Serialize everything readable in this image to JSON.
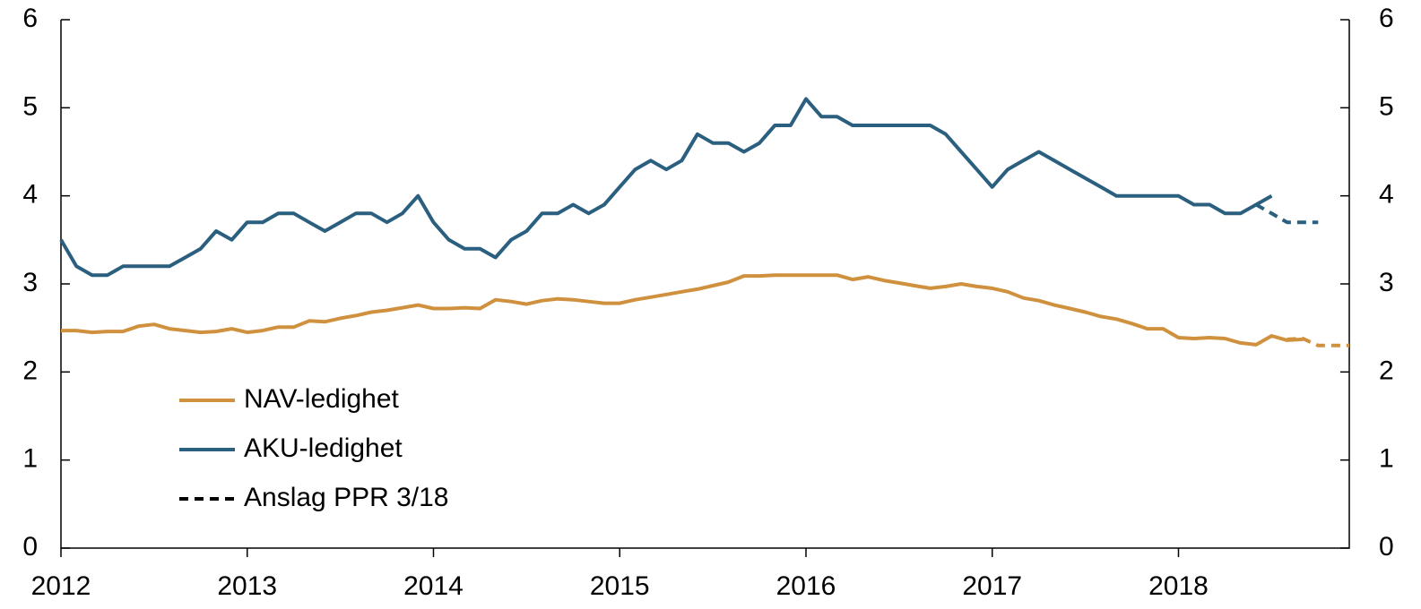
{
  "chart_data": {
    "type": "line",
    "xlim": [
      2012,
      2018.917
    ],
    "xticks": [
      2012,
      2013,
      2014,
      2015,
      2016,
      2017,
      2018
    ],
    "ylim": [
      0,
      6
    ],
    "yticks": [
      0,
      1,
      2,
      3,
      4,
      5,
      6
    ],
    "y2lim": [
      0,
      6
    ],
    "y2ticks": [
      0,
      1,
      2,
      3,
      4,
      5,
      6
    ],
    "forecast_label": "Anslag PPR 3/18",
    "forecast_legend_color": "#000000",
    "series": [
      {
        "name": "NAV-ledighet",
        "color": "#d0913f",
        "x": [
          2012.0,
          2012.083,
          2012.167,
          2012.25,
          2012.333,
          2012.417,
          2012.5,
          2012.583,
          2012.667,
          2012.75,
          2012.833,
          2012.917,
          2013.0,
          2013.083,
          2013.167,
          2013.25,
          2013.333,
          2013.417,
          2013.5,
          2013.583,
          2013.667,
          2013.75,
          2013.833,
          2013.917,
          2014.0,
          2014.083,
          2014.167,
          2014.25,
          2014.333,
          2014.417,
          2014.5,
          2014.583,
          2014.667,
          2014.75,
          2014.833,
          2014.917,
          2015.0,
          2015.083,
          2015.167,
          2015.25,
          2015.333,
          2015.417,
          2015.5,
          2015.583,
          2015.667,
          2015.75,
          2015.833,
          2015.917,
          2016.0,
          2016.083,
          2016.167,
          2016.25,
          2016.333,
          2016.417,
          2016.5,
          2016.583,
          2016.667,
          2016.75,
          2016.833,
          2016.917,
          2017.0,
          2017.083,
          2017.167,
          2017.25,
          2017.333,
          2017.417,
          2017.5,
          2017.583,
          2017.667,
          2017.75,
          2017.833,
          2017.917,
          2018.0,
          2018.083,
          2018.167,
          2018.25,
          2018.333,
          2018.417,
          2018.5,
          2018.583,
          2018.667
        ],
        "values": [
          2.47,
          2.47,
          2.45,
          2.46,
          2.46,
          2.52,
          2.54,
          2.49,
          2.47,
          2.45,
          2.46,
          2.49,
          2.45,
          2.47,
          2.51,
          2.51,
          2.58,
          2.57,
          2.61,
          2.64,
          2.68,
          2.7,
          2.73,
          2.76,
          2.72,
          2.72,
          2.73,
          2.72,
          2.82,
          2.8,
          2.77,
          2.81,
          2.83,
          2.82,
          2.8,
          2.78,
          2.78,
          2.82,
          2.85,
          2.88,
          2.91,
          2.94,
          2.98,
          3.02,
          3.09,
          3.09,
          3.1,
          3.1,
          3.1,
          3.1,
          3.1,
          3.05,
          3.08,
          3.04,
          3.01,
          2.98,
          2.95,
          2.97,
          3.0,
          2.97,
          2.95,
          2.91,
          2.84,
          2.81,
          2.76,
          2.72,
          2.68,
          2.63,
          2.6,
          2.55,
          2.49,
          2.49,
          2.39,
          2.38,
          2.39,
          2.38,
          2.33,
          2.31,
          2.41,
          2.36,
          2.37
        ],
        "forecast": {
          "x": [
            2018.583,
            2018.667,
            2018.75,
            2018.833,
            2018.917
          ],
          "values": [
            2.37,
            2.38,
            2.3,
            2.3,
            2.3
          ]
        }
      },
      {
        "name": "AKU-ledighet",
        "color": "#2b5f7f",
        "x": [
          2012.0,
          2012.083,
          2012.167,
          2012.25,
          2012.333,
          2012.417,
          2012.5,
          2012.583,
          2012.667,
          2012.75,
          2012.833,
          2012.917,
          2013.0,
          2013.083,
          2013.167,
          2013.25,
          2013.333,
          2013.417,
          2013.5,
          2013.583,
          2013.667,
          2013.75,
          2013.833,
          2013.917,
          2014.0,
          2014.083,
          2014.167,
          2014.25,
          2014.333,
          2014.417,
          2014.5,
          2014.583,
          2014.667,
          2014.75,
          2014.833,
          2014.917,
          2015.0,
          2015.083,
          2015.167,
          2015.25,
          2015.333,
          2015.417,
          2015.5,
          2015.583,
          2015.667,
          2015.75,
          2015.833,
          2015.917,
          2016.0,
          2016.083,
          2016.167,
          2016.25,
          2016.333,
          2016.417,
          2016.5,
          2016.583,
          2016.667,
          2016.75,
          2016.833,
          2016.917,
          2017.0,
          2017.083,
          2017.167,
          2017.25,
          2017.333,
          2017.417,
          2017.5,
          2017.583,
          2017.667,
          2017.75,
          2017.833,
          2017.917,
          2018.0,
          2018.083,
          2018.167,
          2018.25,
          2018.333,
          2018.417,
          2018.5
        ],
        "values": [
          3.5,
          3.2,
          3.1,
          3.1,
          3.2,
          3.2,
          3.2,
          3.2,
          3.3,
          3.4,
          3.6,
          3.5,
          3.7,
          3.7,
          3.8,
          3.8,
          3.7,
          3.6,
          3.7,
          3.8,
          3.8,
          3.7,
          3.8,
          4.0,
          3.7,
          3.5,
          3.4,
          3.4,
          3.3,
          3.5,
          3.6,
          3.8,
          3.8,
          3.9,
          3.8,
          3.9,
          4.1,
          4.3,
          4.4,
          4.3,
          4.4,
          4.7,
          4.6,
          4.6,
          4.5,
          4.6,
          4.8,
          4.8,
          5.1,
          4.9,
          4.9,
          4.8,
          4.8,
          4.8,
          4.8,
          4.8,
          4.8,
          4.7,
          4.5,
          4.3,
          4.1,
          4.3,
          4.4,
          4.5,
          4.4,
          4.3,
          4.2,
          4.1,
          4.0,
          4.0,
          4.0,
          4.0,
          4.0,
          3.9,
          3.9,
          3.8,
          3.8,
          3.9,
          4.0
        ],
        "forecast": {
          "x": [
            2018.417,
            2018.5,
            2018.583,
            2018.667,
            2018.75
          ],
          "values": [
            3.9,
            3.8,
            3.7,
            3.7,
            3.7
          ]
        }
      }
    ]
  }
}
